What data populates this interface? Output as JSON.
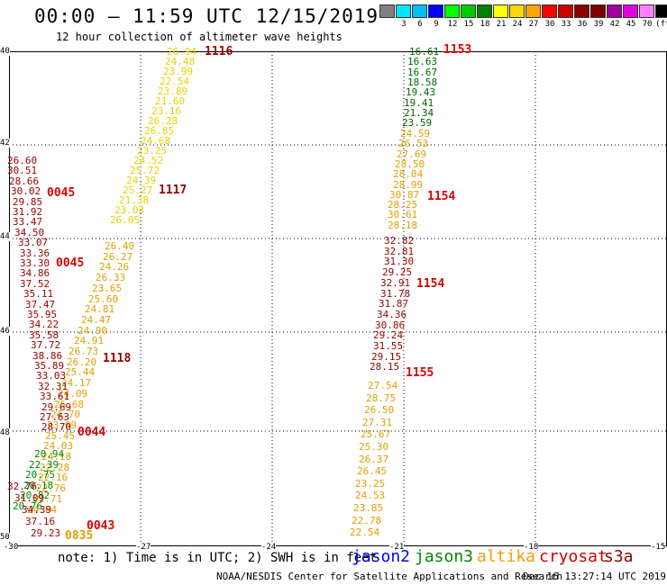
{
  "title": "00:00 – 11:59 UTC 12/15/2019",
  "subtitle": "12 hour collection of altimeter wave heights",
  "scale": {
    "unit": "(ft)",
    "labels": [
      "",
      "3",
      "6",
      "9",
      "12",
      "15",
      "18",
      "21",
      "24",
      "27",
      "30",
      "33",
      "36",
      "39",
      "42",
      "45",
      "70"
    ],
    "colors": [
      "#808080",
      "#00e5ff",
      "#00bfff",
      "#0000ff",
      "#00ff00",
      "#00cc00",
      "#008000",
      "#ffff00",
      "#ffd700",
      "#ffa500",
      "#ff0000",
      "#cc0000",
      "#8b0000",
      "#800000",
      "#a000a0",
      "#e000e0",
      "#ff80ff",
      "#000000"
    ]
  },
  "axes": {
    "lat": [
      "40",
      "42",
      "44",
      "46",
      "48",
      "50"
    ],
    "lon": [
      "-30",
      "-27",
      "-24",
      "-21",
      "-18",
      "-15"
    ]
  },
  "note": "note: 1) Time is in UTC; 2) SWH is in feet",
  "legend": [
    {
      "name": "jason2",
      "color": "#0000ee"
    },
    {
      "name": "jason3",
      "color": "#008800"
    },
    {
      "name": "altika",
      "color": "#ff9900"
    },
    {
      "name": "cryosat",
      "color": "#cc0000"
    },
    {
      "name": "s3a",
      "color": "#8b0000"
    }
  ],
  "footer": {
    "credit": "NOAA/NESDIS Center for Satellite Applications and Research",
    "timestamp": "Dec 16 13:27:14 UTC 2019"
  },
  "colors": {
    "yellow": "#e6d200",
    "orange": "#e0a000",
    "red": "#dd0000",
    "darkred": "#990000",
    "green": "#008800",
    "darkgreen": "#006600",
    "blue": "#0000dd"
  },
  "tracks": [
    {
      "name": "altika-track-west-upper",
      "color": "yellow",
      "values": [
        "26.94",
        "24.48",
        "23.99",
        "22.54",
        "23.89",
        "21.60",
        "23.16",
        "26.28",
        "26.85",
        "24.68",
        "23.25",
        "24.52",
        "25.72",
        "24.39",
        "25.27",
        "21.38",
        "23.03",
        "26.05"
      ]
    },
    {
      "name": "altika-track-west-lower",
      "color": "orange",
      "values": [
        "26.40",
        "26.27",
        "24.26",
        "26.33",
        "23.65",
        "25.60",
        "24.81",
        "24.47",
        "24.90",
        "24.91",
        "26.73",
        "26.20",
        "25.44",
        "24.17",
        "24.09",
        "25.68",
        "24.70",
        "23.09",
        "25.45",
        "24.03",
        "24.18",
        "22.28",
        "22.16",
        "22.76",
        "21.71",
        "24.84"
      ]
    },
    {
      "name": "cryosat-track-west",
      "color": "darkred",
      "values": [
        "26.60",
        "30.51",
        "28.66",
        "30.02",
        "29.85",
        "31.92",
        "33.47",
        "34.50",
        "33.07",
        "33.36",
        "33.30",
        "34.86",
        "37.52",
        "35.11",
        "37.47",
        "35.95",
        "34.22",
        "35.58",
        "37.72",
        "38.86",
        "35.89",
        "33.03",
        "32.31",
        "33.61",
        "29.69",
        "27.63",
        "28.70"
      ]
    },
    {
      "name": "jason3-track-west",
      "color": "green",
      "values": [
        "20.94",
        "22.39",
        "20.75",
        "20.18",
        "20.82",
        "20.76"
      ]
    },
    {
      "name": "cryosat-track-southwest",
      "color": "darkred",
      "values": [
        "32.76",
        "31.09",
        "34.39",
        "37.16",
        "29.23"
      ]
    },
    {
      "name": "jason3-track-east",
      "color": "darkgreen",
      "values": [
        "16.61",
        "16.63",
        "16.67",
        "18.58",
        "19.43",
        "19.41",
        "21.34",
        "23.59"
      ]
    },
    {
      "name": "altika-track-east-upper",
      "color": "orange",
      "values": [
        "24.59",
        "26.53",
        "27.69",
        "28.50",
        "28.04",
        "28.99",
        "30.87",
        "28.25",
        "30.61",
        "28.18"
      ]
    },
    {
      "name": "cryosat-track-east",
      "color": "darkred",
      "values": [
        "32.82",
        "32.81",
        "31.30",
        "29.25",
        "32.91",
        "31.78",
        "31.87",
        "34.36",
        "30.86",
        "29.24",
        "31.55",
        "29.15",
        "28.15"
      ]
    },
    {
      "name": "altika-track-east-lower",
      "color": "orange",
      "values": [
        "27.54",
        "28.75",
        "26.50",
        "27.31",
        "25.67",
        "25.30",
        "26.37",
        "26.45",
        "23.25",
        "24.53",
        "23.85",
        "22.78",
        "22.54"
      ]
    }
  ],
  "pass_times": [
    {
      "label": "1116",
      "color": "darkred"
    },
    {
      "label": "1117",
      "color": "darkred"
    },
    {
      "label": "1118",
      "color": "darkred"
    },
    {
      "label": "0045",
      "color": "red"
    },
    {
      "label": "0045",
      "color": "red"
    },
    {
      "label": "0044",
      "color": "red"
    },
    {
      "label": "0043",
      "color": "red"
    },
    {
      "label": "0835",
      "color": "orange"
    },
    {
      "label": "1153",
      "color": "red"
    },
    {
      "label": "1154",
      "color": "red"
    },
    {
      "label": "1154",
      "color": "red"
    },
    {
      "label": "1155",
      "color": "red"
    }
  ]
}
